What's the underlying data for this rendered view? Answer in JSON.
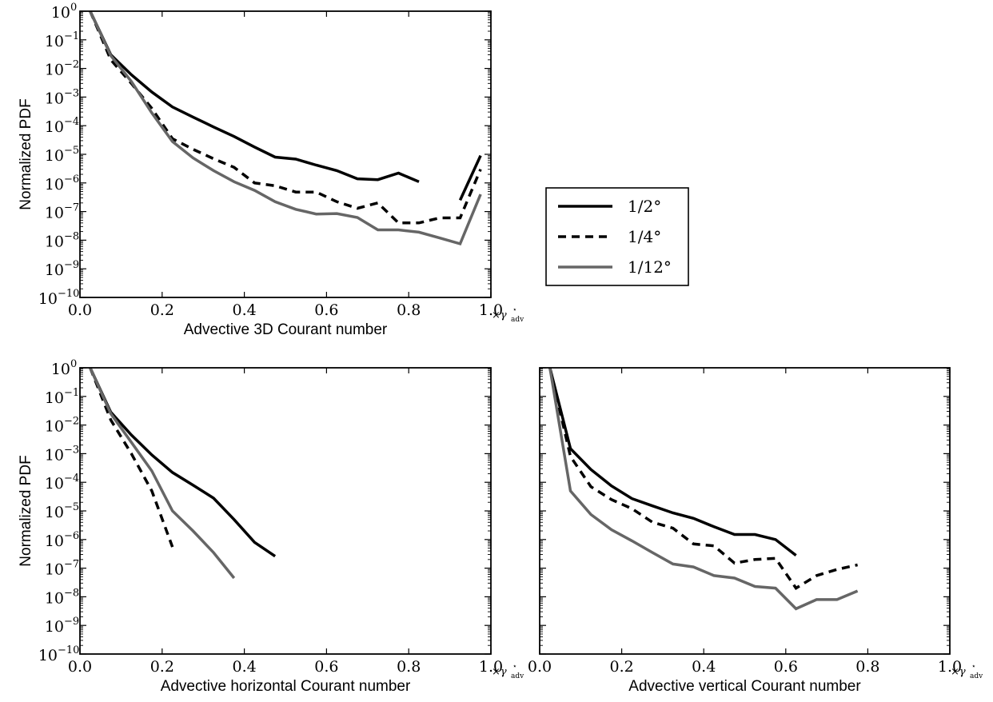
{
  "chart_data": [
    {
      "type": "line",
      "xlabel": "Advective 3D Courant number",
      "ylabel": "Normalized PDF",
      "xlim": [
        0.0,
        1.0
      ],
      "ylim_exponents": [
        -10,
        0
      ],
      "y_scale": "log",
      "x_ticks": [
        "0.0",
        "0.2",
        "0.4",
        "0.6",
        "0.8",
        "1.0"
      ],
      "y_ticks": [
        {
          "base": "10",
          "exp": "0"
        },
        {
          "base": "10",
          "exp": "−1"
        },
        {
          "base": "10",
          "exp": "−2"
        },
        {
          "base": "10",
          "exp": "−3"
        },
        {
          "base": "10",
          "exp": "−4"
        },
        {
          "base": "10",
          "exp": "−5"
        },
        {
          "base": "10",
          "exp": "−6"
        },
        {
          "base": "10",
          "exp": "−7"
        },
        {
          "base": "10",
          "exp": "−8"
        },
        {
          "base": "10",
          "exp": "−9"
        },
        {
          "base": "10",
          "exp": "−10"
        }
      ],
      "x_multiplier": {
        "prefix": "×γ",
        "sup": "⋆",
        "sub": "adv"
      },
      "series": [
        {
          "name": "1/2°",
          "segments": [
            [
              [
                0.025,
                1.0
              ],
              [
                0.075,
                0.03
              ],
              [
                0.125,
                0.006
              ],
              [
                0.175,
                0.0015
              ],
              [
                0.225,
                0.00045
              ],
              [
                0.275,
                0.0002
              ],
              [
                0.325,
                9e-05
              ],
              [
                0.375,
                4.2e-05
              ],
              [
                0.425,
                1.8e-05
              ],
              [
                0.475,
                8e-06
              ],
              [
                0.525,
                6.8e-06
              ],
              [
                0.575,
                4.2e-06
              ],
              [
                0.625,
                2.7e-06
              ],
              [
                0.675,
                1.4e-06
              ],
              [
                0.725,
                1.3e-06
              ],
              [
                0.775,
                2.2e-06
              ],
              [
                0.825,
                1.1e-06
              ]
            ],
            [
              [
                0.925,
                2.5e-07
              ],
              [
                0.975,
                9e-06
              ]
            ]
          ]
        },
        {
          "name": "1/4°",
          "segments": [
            [
              [
                0.025,
                1.0
              ],
              [
                0.075,
                0.02
              ],
              [
                0.125,
                0.003
              ],
              [
                0.175,
                0.0004
              ],
              [
                0.225,
                3.5e-05
              ],
              [
                0.275,
                1.5e-05
              ],
              [
                0.325,
                7e-06
              ],
              [
                0.375,
                3.5e-06
              ],
              [
                0.425,
                1e-06
              ],
              [
                0.475,
                8e-07
              ],
              [
                0.525,
                4.8e-07
              ],
              [
                0.575,
                4.8e-07
              ],
              [
                0.625,
                2.2e-07
              ],
              [
                0.675,
                1.3e-07
              ],
              [
                0.725,
                2e-07
              ],
              [
                0.775,
                4e-08
              ],
              [
                0.825,
                4e-08
              ],
              [
                0.875,
                6e-08
              ],
              [
                0.925,
                6e-08
              ],
              [
                0.975,
                3e-06
              ]
            ]
          ]
        },
        {
          "name": "1/12°",
          "segments": [
            [
              [
                0.025,
                1.0
              ],
              [
                0.075,
                0.028
              ],
              [
                0.125,
                0.0035
              ],
              [
                0.175,
                0.00028
              ],
              [
                0.225,
                2.8e-05
              ],
              [
                0.275,
                7.5e-06
              ],
              [
                0.325,
                2.7e-06
              ],
              [
                0.375,
                1.1e-06
              ],
              [
                0.425,
                5.5e-07
              ],
              [
                0.475,
                2.2e-07
              ],
              [
                0.525,
                1.2e-07
              ],
              [
                0.575,
                8.2e-08
              ],
              [
                0.625,
                8.5e-08
              ],
              [
                0.675,
                6.2e-08
              ],
              [
                0.725,
                2.3e-08
              ],
              [
                0.775,
                2.3e-08
              ],
              [
                0.825,
                1.9e-08
              ],
              [
                0.875,
                1.2e-08
              ],
              [
                0.925,
                7.5e-09
              ],
              [
                0.975,
                4e-07
              ]
            ]
          ]
        }
      ]
    },
    {
      "type": "line",
      "xlabel": "Advective horizontal Courant number",
      "ylabel": "Normalized PDF",
      "xlim": [
        0.0,
        1.0
      ],
      "ylim_exponents": [
        -10,
        0
      ],
      "y_scale": "log",
      "x_ticks": [
        "0.0",
        "0.2",
        "0.4",
        "0.6",
        "0.8",
        "1.0"
      ],
      "y_ticks": [
        {
          "base": "10",
          "exp": "0"
        },
        {
          "base": "10",
          "exp": "−1"
        },
        {
          "base": "10",
          "exp": "−2"
        },
        {
          "base": "10",
          "exp": "−3"
        },
        {
          "base": "10",
          "exp": "−4"
        },
        {
          "base": "10",
          "exp": "−5"
        },
        {
          "base": "10",
          "exp": "−6"
        },
        {
          "base": "10",
          "exp": "−7"
        },
        {
          "base": "10",
          "exp": "−8"
        },
        {
          "base": "10",
          "exp": "−9"
        },
        {
          "base": "10",
          "exp": "−10"
        }
      ],
      "x_multiplier": {
        "prefix": "×γ",
        "sup": "⋆",
        "sub": "adv"
      },
      "series": [
        {
          "name": "1/2°",
          "segments": [
            [
              [
                0.025,
                1.0
              ],
              [
                0.075,
                0.028
              ],
              [
                0.125,
                0.0045
              ],
              [
                0.175,
                0.0009
              ],
              [
                0.225,
                0.00022
              ],
              [
                0.275,
                8e-05
              ],
              [
                0.325,
                2.8e-05
              ],
              [
                0.375,
                5e-06
              ],
              [
                0.425,
                8e-07
              ],
              [
                0.475,
                2.6e-07
              ]
            ]
          ]
        },
        {
          "name": "1/4°",
          "segments": [
            [
              [
                0.025,
                1.0
              ],
              [
                0.075,
                0.015
              ],
              [
                0.125,
                0.001
              ],
              [
                0.175,
                5e-05
              ],
              [
                0.225,
                5.5e-07
              ]
            ]
          ]
        },
        {
          "name": "1/12°",
          "segments": [
            [
              [
                0.025,
                1.0
              ],
              [
                0.075,
                0.025
              ],
              [
                0.125,
                0.0025
              ],
              [
                0.175,
                0.00025
              ],
              [
                0.225,
                1e-05
              ],
              [
                0.275,
                2e-06
              ],
              [
                0.325,
                3.5e-07
              ],
              [
                0.375,
                4.5e-08
              ]
            ]
          ]
        }
      ]
    },
    {
      "type": "line",
      "xlabel": "Advective vertical Courant number",
      "ylabel": "",
      "xlim": [
        0.0,
        1.0
      ],
      "ylim_exponents": [
        -10,
        0
      ],
      "y_scale": "log",
      "x_ticks": [
        "0.0",
        "0.2",
        "0.4",
        "0.6",
        "0.8",
        "1.0"
      ],
      "y_ticks": [],
      "x_multiplier": {
        "prefix": "×γ",
        "sup": "⋆",
        "sub": "adv"
      },
      "series": [
        {
          "name": "1/2°",
          "segments": [
            [
              [
                0.025,
                1.0
              ],
              [
                0.075,
                0.0015
              ],
              [
                0.125,
                0.00028
              ],
              [
                0.175,
                7.5e-05
              ],
              [
                0.225,
                2.7e-05
              ],
              [
                0.275,
                1.5e-05
              ],
              [
                0.325,
                8.5e-06
              ],
              [
                0.375,
                5.5e-06
              ],
              [
                0.425,
                2.8e-06
              ],
              [
                0.475,
                1.5e-06
              ],
              [
                0.525,
                1.5e-06
              ],
              [
                0.575,
                1e-06
              ],
              [
                0.625,
                2.8e-07
              ]
            ]
          ]
        },
        {
          "name": "1/4°",
          "segments": [
            [
              [
                0.025,
                1.0
              ],
              [
                0.075,
                0.0008
              ],
              [
                0.125,
                7e-05
              ],
              [
                0.175,
                2.5e-05
              ],
              [
                0.225,
                1.2e-05
              ],
              [
                0.275,
                4e-06
              ],
              [
                0.325,
                2.5e-06
              ],
              [
                0.375,
                7e-07
              ],
              [
                0.425,
                6e-07
              ],
              [
                0.475,
                1.5e-07
              ],
              [
                0.525,
                2e-07
              ],
              [
                0.575,
                2.2e-07
              ],
              [
                0.625,
                2e-08
              ],
              [
                0.675,
                5.5e-08
              ],
              [
                0.725,
                9e-08
              ],
              [
                0.775,
                1.3e-07
              ]
            ]
          ]
        },
        {
          "name": "1/12°",
          "segments": [
            [
              [
                0.025,
                1.0
              ],
              [
                0.075,
                5e-05
              ],
              [
                0.125,
                7.5e-06
              ],
              [
                0.175,
                2.2e-06
              ],
              [
                0.225,
                9e-07
              ],
              [
                0.275,
                3.5e-07
              ],
              [
                0.325,
                1.4e-07
              ],
              [
                0.375,
                1.1e-07
              ],
              [
                0.425,
                5.5e-08
              ],
              [
                0.475,
                4.5e-08
              ],
              [
                0.525,
                2.3e-08
              ],
              [
                0.575,
                2e-08
              ],
              [
                0.625,
                3.8e-09
              ],
              [
                0.675,
                8e-09
              ],
              [
                0.725,
                8e-09
              ],
              [
                0.775,
                1.6e-08
              ]
            ]
          ]
        }
      ]
    }
  ],
  "legend": [
    {
      "label": "1/2°",
      "color": "#000000",
      "style": "solid"
    },
    {
      "label": "1/4°",
      "color": "#000000",
      "style": "dashed"
    },
    {
      "label": "1/12°",
      "color": "#666666",
      "style": "solid"
    }
  ]
}
